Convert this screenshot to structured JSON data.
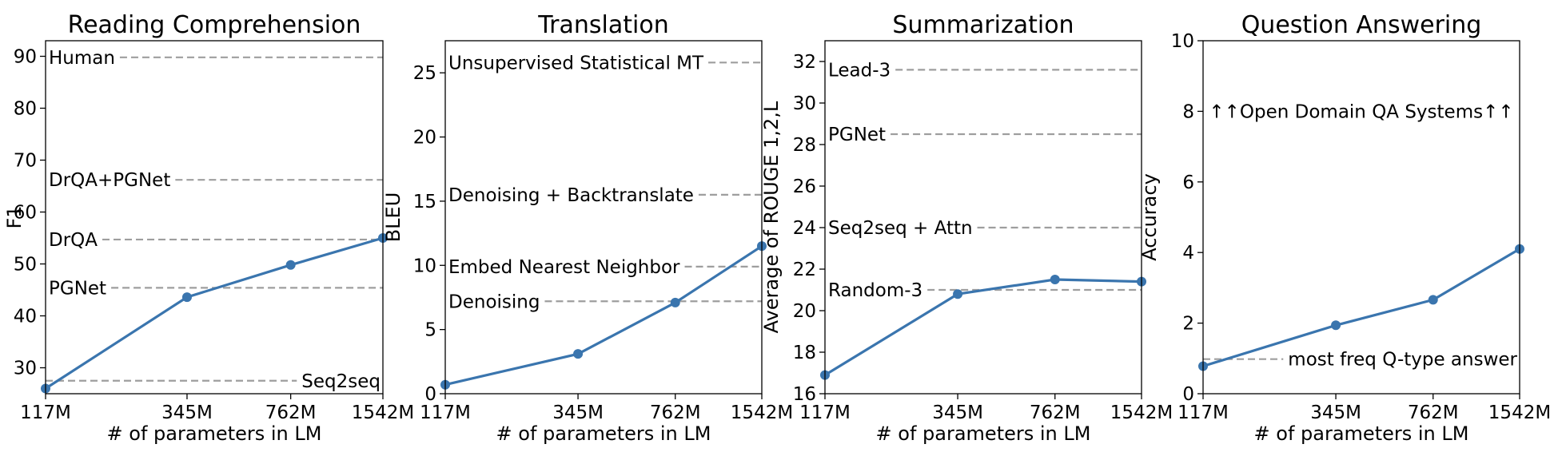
{
  "chart_data": [
    {
      "type": "line",
      "title": "Reading Comprehension",
      "xlabel": "# of parameters in LM",
      "ylabel": "F1",
      "x_scale": "log",
      "x_ticks": [
        "117M",
        "345M",
        "762M",
        "1542M"
      ],
      "x": [
        117,
        345,
        762,
        1542
      ],
      "xlim": [
        117,
        1542
      ],
      "ylim": [
        25,
        93
      ],
      "y_ticks": [
        30,
        40,
        50,
        60,
        70,
        80,
        90
      ],
      "series": [
        {
          "values": [
            26,
            43.6,
            49.8,
            55
          ]
        }
      ],
      "reference_lines": [
        {
          "label": "Human",
          "value": 89.8,
          "align": "left"
        },
        {
          "label": "DrQA+PGNet",
          "value": 66.2,
          "align": "left"
        },
        {
          "label": "DrQA",
          "value": 54.7,
          "align": "left"
        },
        {
          "label": "PGNet",
          "value": 45.4,
          "align": "left"
        },
        {
          "label": "Seq2seq",
          "value": 27.5,
          "align": "right"
        }
      ]
    },
    {
      "type": "line",
      "title": "Translation",
      "xlabel": "# of parameters in LM",
      "ylabel": "BLEU",
      "x_scale": "log",
      "x_ticks": [
        "117M",
        "345M",
        "762M",
        "1542M"
      ],
      "x": [
        117,
        345,
        762,
        1542
      ],
      "xlim": [
        117,
        1542
      ],
      "ylim": [
        0,
        27.5
      ],
      "y_ticks": [
        0,
        5,
        10,
        15,
        20,
        25
      ],
      "series": [
        {
          "values": [
            0.7,
            3.1,
            7.1,
            11.5
          ]
        }
      ],
      "reference_lines": [
        {
          "label": "Unsupervised Statistical MT",
          "value": 25.8,
          "align": "left"
        },
        {
          "label": "Denoising + Backtranslate",
          "value": 15.5,
          "align": "left"
        },
        {
          "label": "Embed Nearest Neighbor",
          "value": 9.9,
          "align": "left"
        },
        {
          "label": "Denoising",
          "value": 7.2,
          "align": "left"
        }
      ]
    },
    {
      "type": "line",
      "title": "Summarization",
      "xlabel": "# of parameters in LM",
      "ylabel": "Average of ROUGE 1,2,L",
      "x_scale": "log",
      "x_ticks": [
        "117M",
        "345M",
        "762M",
        "1542M"
      ],
      "x": [
        117,
        345,
        762,
        1542
      ],
      "xlim": [
        117,
        1542
      ],
      "ylim": [
        16,
        33
      ],
      "y_ticks": [
        16,
        18,
        20,
        22,
        24,
        26,
        28,
        30,
        32
      ],
      "series": [
        {
          "values": [
            16.9,
            20.8,
            21.5,
            21.4
          ]
        }
      ],
      "reference_lines": [
        {
          "label": "Lead-3",
          "value": 31.6,
          "align": "left"
        },
        {
          "label": "PGNet",
          "value": 28.5,
          "align": "left"
        },
        {
          "label": "Seq2seq + Attn",
          "value": 24.0,
          "align": "left"
        },
        {
          "label": "Random-3",
          "value": 21.0,
          "align": "left"
        }
      ]
    },
    {
      "type": "line",
      "title": "Question Answering",
      "xlabel": "# of parameters in LM",
      "ylabel": "Accuracy",
      "x_scale": "log",
      "x_ticks": [
        "117M",
        "345M",
        "762M",
        "1542M"
      ],
      "x": [
        117,
        345,
        762,
        1542
      ],
      "xlim": [
        117,
        1542
      ],
      "ylim": [
        0,
        10
      ],
      "y_ticks": [
        0,
        2,
        4,
        6,
        8,
        10
      ],
      "series": [
        {
          "values": [
            0.78,
            1.94,
            2.66,
            4.1
          ]
        }
      ],
      "reference_lines": [
        {
          "label": "most freq Q-type answer",
          "value": 0.98,
          "align": "right"
        }
      ],
      "annotations": [
        {
          "text": "↑↑Open Domain QA Systems↑↑",
          "value": 8.0
        }
      ]
    }
  ],
  "colors": {
    "series": "#3a75ae",
    "reference": "#9e9e9e",
    "axes": "#000000"
  }
}
